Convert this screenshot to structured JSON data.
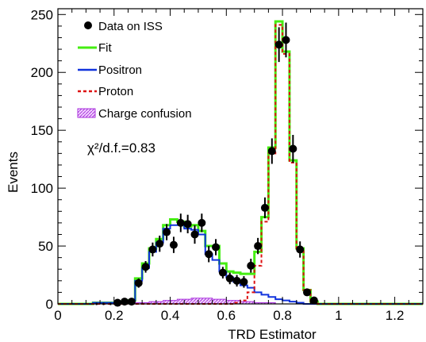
{
  "chart_data": {
    "type": "line",
    "xlabel": "TRD Estimator",
    "ylabel": "Events",
    "xlim": [
      0,
      1.3
    ],
    "ylim": [
      0,
      255
    ],
    "x_ticks": [
      "0",
      "0.2",
      "0.4",
      "0.6",
      "0.8",
      "1",
      "1.2"
    ],
    "x_tick_values": [
      0,
      0.2,
      0.4,
      0.6,
      0.8,
      1.0,
      1.2
    ],
    "y_ticks": [
      "0",
      "50",
      "100",
      "150",
      "200",
      "250"
    ],
    "y_tick_values": [
      0,
      50,
      100,
      150,
      200,
      250
    ],
    "annotation": "χ²/d.f.=0.83",
    "legend_position": "top-left",
    "bin_edges": [
      0.125,
      0.15,
      0.175,
      0.2,
      0.225,
      0.25,
      0.275,
      0.3,
      0.325,
      0.35,
      0.375,
      0.4,
      0.425,
      0.45,
      0.475,
      0.5,
      0.525,
      0.55,
      0.575,
      0.6,
      0.625,
      0.65,
      0.675,
      0.7,
      0.725,
      0.75,
      0.775,
      0.8,
      0.825,
      0.85,
      0.875,
      0.9,
      0.925,
      0.95,
      0.975,
      1.0,
      1.025,
      1.05,
      1.075,
      1.1,
      1.125,
      1.15,
      1.175,
      1.2
    ],
    "series": [
      {
        "name": "Data on ISS",
        "kind": "points",
        "color": "#000000",
        "x": [
          0.1375,
          0.1625,
          0.1875,
          0.2125,
          0.2375,
          0.2625,
          0.2875,
          0.3125,
          0.3375,
          0.3625,
          0.3875,
          0.4125,
          0.4375,
          0.4625,
          0.4875,
          0.5125,
          0.5375,
          0.5625,
          0.5875,
          0.6125,
          0.6375,
          0.6625,
          0.6875,
          0.7125,
          0.7375,
          0.7625,
          0.7875,
          0.8125,
          0.8375,
          0.8625,
          0.8875,
          0.9125,
          0.9375,
          0.9625,
          0.9875,
          1.0125,
          1.0375,
          1.0625,
          1.0875,
          1.1125,
          1.1375,
          1.1625,
          1.1875
        ],
        "y": [
          0,
          0,
          0,
          1,
          2,
          2,
          18,
          32,
          47,
          52,
          62,
          51,
          70,
          69,
          60,
          70,
          43,
          49,
          27,
          22,
          20,
          19,
          33,
          50,
          83,
          132,
          224,
          228,
          134,
          47,
          10,
          3,
          0,
          0,
          0,
          0,
          0,
          0,
          0,
          0,
          0,
          0,
          0
        ],
        "yerr": [
          1,
          1,
          1,
          1,
          1.5,
          1.5,
          4,
          5,
          6,
          7,
          7,
          7,
          8,
          8,
          8,
          8,
          7,
          7,
          5,
          5,
          5,
          5,
          6,
          7,
          9,
          11,
          15,
          15,
          12,
          7,
          3,
          2,
          0,
          0,
          0,
          0,
          0,
          0,
          0,
          0,
          0,
          0,
          0
        ]
      },
      {
        "name": "Fit",
        "kind": "step",
        "color": "#44ee11",
        "y": [
          1,
          1,
          1,
          1,
          2,
          3,
          22,
          35,
          48,
          56,
          68,
          73,
          71,
          67,
          68,
          63,
          50,
          50,
          35,
          28,
          27,
          26,
          26,
          45,
          75,
          135,
          244,
          218,
          124,
          48,
          12,
          2,
          0,
          0,
          0,
          0,
          0,
          0,
          0,
          0,
          0,
          0,
          0
        ]
      },
      {
        "name": "Positron",
        "kind": "step",
        "color": "#1133dd",
        "y": [
          1,
          1,
          1,
          1,
          2,
          3,
          20,
          31,
          45,
          53,
          65,
          68,
          68,
          65,
          64,
          60,
          43,
          38,
          28,
          23,
          19,
          16,
          14,
          10,
          8,
          6,
          4,
          3,
          2,
          1,
          0,
          0,
          0,
          0,
          0,
          0,
          0,
          0,
          0,
          0,
          0,
          0,
          0
        ]
      },
      {
        "name": "Proton",
        "kind": "step",
        "color": "#dd1111",
        "y": [
          0,
          0,
          0,
          0,
          0,
          0,
          0,
          0,
          0,
          0,
          0,
          0,
          0,
          0,
          0,
          0,
          0,
          0,
          0,
          0,
          1,
          3,
          10,
          33,
          71,
          130,
          241,
          216,
          122,
          47,
          12,
          2,
          0,
          0,
          0,
          0,
          0,
          0,
          0,
          0,
          0,
          0,
          0
        ]
      },
      {
        "name": "Charge confusion",
        "kind": "band",
        "color": "#aa33dd",
        "y": [
          0,
          0,
          0,
          0,
          0,
          0,
          1,
          1,
          2,
          2,
          3,
          3,
          4,
          4,
          5,
          5,
          5,
          4,
          4,
          3,
          3,
          2,
          2,
          1,
          1,
          1,
          0,
          0,
          0,
          0,
          0,
          0,
          0,
          0,
          0,
          0,
          0,
          0,
          0,
          0,
          0,
          0,
          0
        ]
      }
    ]
  },
  "colors": {
    "fit": "#44ee11",
    "positron": "#1133dd",
    "proton": "#dd1111",
    "charge_confusion": "#aa33dd",
    "data": "#000000"
  }
}
